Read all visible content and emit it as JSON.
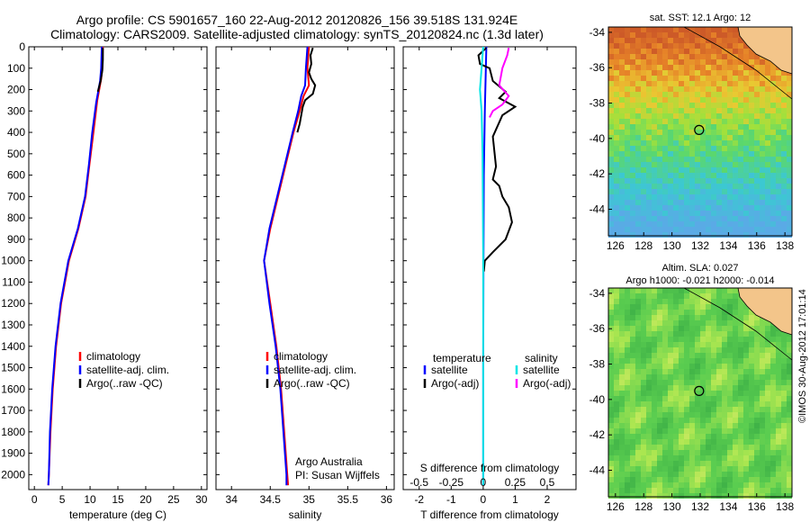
{
  "header": {
    "title_line1": "Argo profile: CS 5901657_160 22-Aug-2012 20120826_156 39.518S 131.924E",
    "title_line2": "Climatology: CARS2009. Satellite-adjusted climatology: synTS_20120824.nc (1.3d later)"
  },
  "colors": {
    "climatology": "#ff0000",
    "satellite_adj": "#0000ff",
    "argo": "#000000",
    "salinity_satellite": "#00e5e5",
    "salinity_argo": "#ff00ff"
  },
  "chart_data": [
    {
      "type": "line",
      "name": "temperature-profile",
      "xlabel": "temperature (deg C)",
      "ylabel": "",
      "xlim": [
        -1,
        31
      ],
      "ylim": [
        2070,
        0
      ],
      "xticks": [
        0,
        5,
        10,
        15,
        20,
        25,
        30
      ],
      "yticks": [
        0,
        100,
        200,
        300,
        400,
        500,
        600,
        700,
        800,
        900,
        1000,
        1100,
        1200,
        1300,
        1400,
        1500,
        1600,
        1700,
        1800,
        1900,
        2000
      ],
      "legend": [
        "climatology",
        "satellite-adj. clim.",
        "Argo(..raw -QC)"
      ],
      "series": [
        {
          "name": "climatology",
          "color": "#ff0000",
          "points": [
            [
              12.3,
              0
            ],
            [
              12.2,
              100
            ],
            [
              12.0,
              150
            ],
            [
              11.3,
              250
            ],
            [
              10.6,
              400
            ],
            [
              9.9,
              550
            ],
            [
              9.2,
              700
            ],
            [
              7.9,
              850
            ],
            [
              6.2,
              1000
            ],
            [
              4.8,
              1200
            ],
            [
              3.9,
              1400
            ],
            [
              3.3,
              1600
            ],
            [
              2.9,
              1800
            ],
            [
              2.6,
              2000
            ],
            [
              2.5,
              2050
            ]
          ]
        },
        {
          "name": "satellite-adj. clim.",
          "color": "#0000ff",
          "points": [
            [
              12.1,
              0
            ],
            [
              12.0,
              100
            ],
            [
              11.8,
              160
            ],
            [
              11.1,
              260
            ],
            [
              10.4,
              400
            ],
            [
              9.8,
              550
            ],
            [
              9.1,
              700
            ],
            [
              7.8,
              850
            ],
            [
              6.1,
              1000
            ],
            [
              4.7,
              1200
            ],
            [
              3.8,
              1400
            ],
            [
              3.2,
              1600
            ],
            [
              2.8,
              1800
            ],
            [
              2.6,
              2000
            ],
            [
              2.5,
              2050
            ]
          ]
        },
        {
          "name": "Argo(..raw -QC)",
          "color": "#000000",
          "points": [
            [
              12.3,
              5
            ],
            [
              12.3,
              60
            ],
            [
              12.2,
              110
            ],
            [
              11.9,
              160
            ],
            [
              11.4,
              210
            ]
          ]
        }
      ]
    },
    {
      "type": "line",
      "name": "salinity-profile",
      "xlabel": "salinity",
      "ylabel": "",
      "xlim": [
        33.8,
        36.1
      ],
      "ylim": [
        2070,
        0
      ],
      "xticks": [
        34,
        34.5,
        35,
        35.5,
        36
      ],
      "legend": [
        "climatology",
        "satellite-adj. clim.",
        "Argo(..raw -QC)"
      ],
      "annotation": [
        "Argo Australia",
        "PI: Susan Wijffels"
      ],
      "series": [
        {
          "name": "climatology",
          "color": "#ff0000",
          "points": [
            [
              35.0,
              0
            ],
            [
              34.98,
              100
            ],
            [
              35.0,
              180
            ],
            [
              34.93,
              230
            ],
            [
              34.88,
              300
            ],
            [
              34.8,
              400
            ],
            [
              34.7,
              550
            ],
            [
              34.6,
              700
            ],
            [
              34.5,
              850
            ],
            [
              34.42,
              1000
            ],
            [
              34.5,
              1200
            ],
            [
              34.58,
              1400
            ],
            [
              34.64,
              1600
            ],
            [
              34.68,
              1800
            ],
            [
              34.72,
              2000
            ],
            [
              34.73,
              2050
            ]
          ]
        },
        {
          "name": "satellite-adj. clim.",
          "color": "#0000ff",
          "points": [
            [
              34.98,
              0
            ],
            [
              34.96,
              100
            ],
            [
              34.95,
              180
            ],
            [
              34.9,
              230
            ],
            [
              34.86,
              300
            ],
            [
              34.79,
              400
            ],
            [
              34.69,
              550
            ],
            [
              34.59,
              700
            ],
            [
              34.49,
              850
            ],
            [
              34.42,
              1000
            ],
            [
              34.49,
              1200
            ],
            [
              34.57,
              1400
            ],
            [
              34.63,
              1600
            ],
            [
              34.67,
              1800
            ],
            [
              34.71,
              2000
            ],
            [
              34.71,
              2050
            ]
          ]
        },
        {
          "name": "Argo(..raw -QC)",
          "color": "#000000",
          "points": [
            [
              35.05,
              5
            ],
            [
              35.02,
              40
            ],
            [
              35.03,
              80
            ],
            [
              35.0,
              120
            ],
            [
              35.03,
              150
            ],
            [
              35.08,
              180
            ],
            [
              35.05,
              220
            ],
            [
              34.95,
              250
            ],
            [
              34.92,
              280
            ],
            [
              34.9,
              320
            ],
            [
              34.88,
              360
            ],
            [
              34.85,
              400
            ]
          ]
        }
      ]
    },
    {
      "type": "line",
      "name": "difference-profile",
      "xlabel": "T difference from climatology",
      "xlabel_top": "S difference from climatology",
      "xlim": [
        -2.5,
        2.9
      ],
      "ylim": [
        2070,
        0
      ],
      "xticks": [
        -2,
        -1,
        0,
        1,
        2
      ],
      "xticks_S": [
        "-0.5",
        "-0.25",
        "0",
        "0.25",
        "0.5"
      ],
      "legend_temperature_title": "temperature",
      "legend_salinity_title": "salinity",
      "legend": [
        "satellite",
        "Argo(-adj)",
        "satellite",
        "Argo(-adj)"
      ],
      "series": [
        {
          "name": "temperature satellite",
          "color": "#0000ff",
          "points": [
            [
              0.1,
              0
            ],
            [
              0.05,
              300
            ],
            [
              0.02,
              600
            ],
            [
              0.01,
              1000
            ],
            [
              0.0,
              1500
            ],
            [
              0.0,
              2050
            ]
          ]
        },
        {
          "name": "temperature Argo(-adj)",
          "color": "#000000",
          "points": [
            [
              0.1,
              5
            ],
            [
              -0.15,
              40
            ],
            [
              -0.1,
              80
            ],
            [
              0.2,
              100
            ],
            [
              0.3,
              160
            ],
            [
              0.7,
              210
            ],
            [
              0.5,
              240
            ],
            [
              1.0,
              280
            ],
            [
              0.6,
              320
            ],
            [
              0.3,
              420
            ],
            [
              0.4,
              560
            ],
            [
              0.3,
              620
            ],
            [
              0.5,
              650
            ],
            [
              0.6,
              700
            ],
            [
              0.8,
              750
            ],
            [
              0.9,
              820
            ],
            [
              0.7,
              900
            ],
            [
              0.3,
              960
            ],
            [
              0.05,
              1000
            ],
            [
              0.02,
              1050
            ]
          ]
        },
        {
          "name": "salinity satellite",
          "color": "#00e5e5",
          "points": [
            [
              0.0,
              0
            ],
            [
              -0.1,
              200
            ],
            [
              -0.05,
              300
            ],
            [
              -0.02,
              500
            ],
            [
              0.0,
              1000
            ],
            [
              0.0,
              2050
            ]
          ]
        },
        {
          "name": "salinity Argo(-adj)",
          "color": "#ff00ff",
          "points": [
            [
              0.8,
              5
            ],
            [
              0.75,
              40
            ],
            [
              0.6,
              100
            ],
            [
              0.5,
              180
            ],
            [
              0.8,
              230
            ],
            [
              0.6,
              270
            ],
            [
              0.3,
              300
            ],
            [
              0.2,
              330
            ]
          ]
        }
      ]
    },
    {
      "type": "heatmap",
      "name": "sst-map",
      "title": "sat. SST: 12.1  Argo: 12",
      "xlim": [
        125.5,
        138.5
      ],
      "ylim": [
        -45.5,
        -33.7
      ],
      "xticks": [
        126,
        128,
        130,
        132,
        134,
        136,
        138
      ],
      "yticks": [
        -34,
        -36,
        -38,
        -40,
        -42,
        -44
      ],
      "profile_marker": [
        131.924,
        -39.518
      ]
    },
    {
      "type": "heatmap",
      "name": "sla-map",
      "title_line1": "Altim. SLA: 0.027",
      "title_line2": "Argo h1000: -0.021 h2000: -0.014",
      "xlim": [
        125.5,
        138.5
      ],
      "ylim": [
        -45.5,
        -33.7
      ],
      "xticks": [
        126,
        128,
        130,
        132,
        134,
        136,
        138
      ],
      "yticks": [
        -34,
        -36,
        -38,
        -40,
        -42,
        -44
      ],
      "profile_marker": [
        131.924,
        -39.518
      ]
    }
  ],
  "footer": {
    "side_label": "©IMOS 30-Aug-2012 17:01:14"
  }
}
